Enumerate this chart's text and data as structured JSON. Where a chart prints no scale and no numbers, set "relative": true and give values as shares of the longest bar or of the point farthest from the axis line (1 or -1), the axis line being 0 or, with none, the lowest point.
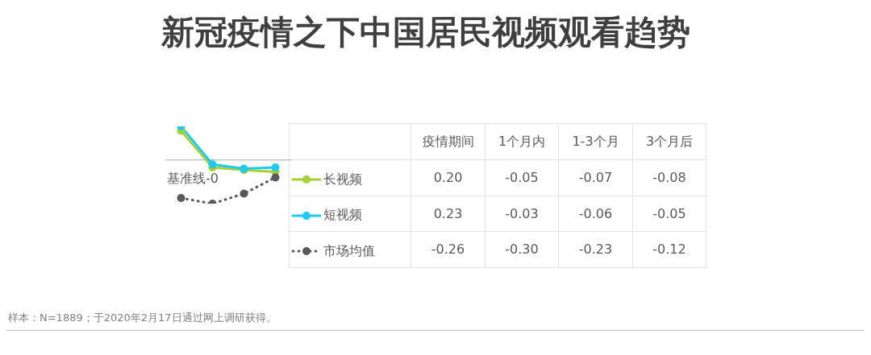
{
  "chart_data": [
    {
      "type": "line",
      "title": "新冠疫情之下中国居民视频观看趋势",
      "relative": true,
      "categories": [
        null,
        null,
        null,
        null
      ],
      "series": [
        {
          "name": "长视频",
          "color": "#a9cf38",
          "values": [
            0.67,
            -0.17,
            -0.23,
            -0.27
          ],
          "line_style": "solid"
        },
        {
          "name": "短视频",
          "color": "#1ec9f2",
          "values": [
            0.77,
            -0.1,
            -0.2,
            -0.17
          ],
          "line_style": "solid"
        },
        {
          "name": "市场均值",
          "color": "#595959",
          "values": [
            -0.87,
            -1,
            -0.77,
            -0.4
          ],
          "line_style": "dotted"
        }
      ],
      "ref_lines": [
        {
          "axis": "y",
          "value": 0,
          "label": "基准线-0",
          "color": "#a6a6a6"
        }
      ],
      "marker": "circle",
      "legend": "right",
      "tick_labels": false,
      "annotations": [
        "样本：N=1889；于2020年2月17日通过网上调研获得。"
      ]
    },
    {
      "type": "other",
      "categories": [
        "疫情期间",
        "1个月内",
        "1-3个月",
        "3个月后"
      ],
      "series": [
        {
          "values": [
            0.2,
            -0.05,
            -0.07,
            -0.08
          ],
          "value_labels": [
            "0.20",
            "-0.05",
            "-0.07",
            "-0.08"
          ]
        },
        {
          "values": [
            0.23,
            -0.03,
            -0.06,
            -0.05
          ],
          "value_labels": [
            "0.23",
            "-0.03",
            "-0.06",
            "-0.05"
          ]
        },
        {
          "values": [
            -0.26,
            -0.3,
            -0.23,
            -0.12
          ],
          "value_labels": [
            "-0.26",
            "-0.30",
            "-0.23",
            "-0.12"
          ]
        }
      ]
    }
  ]
}
